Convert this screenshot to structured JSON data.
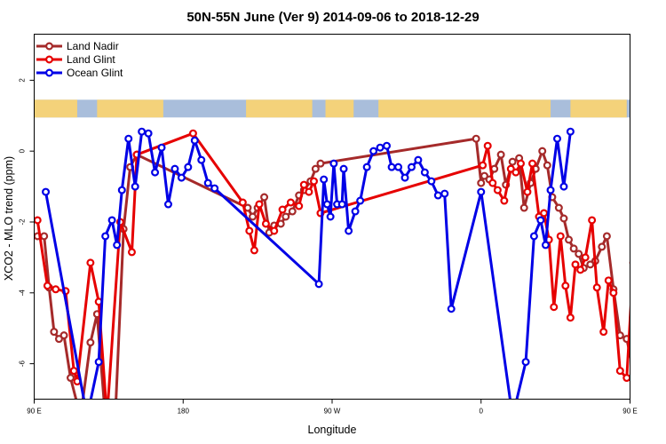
{
  "chart_data": {
    "type": "line",
    "title": "50N-55N June (Ver 9)   2014-09-06 to 2018-12-29",
    "xlabel": "Longitude",
    "ylabel": "XCO2 - MLO trend (ppm)",
    "xlim": [
      90,
      450
    ],
    "ylim": [
      -7,
      3.3
    ],
    "xticks": [
      {
        "value": 90,
        "label": "90 E"
      },
      {
        "value": 180,
        "label": "180"
      },
      {
        "value": 270,
        "label": "90 W"
      },
      {
        "value": 360,
        "label": "0"
      },
      {
        "value": 450,
        "label": "90 E"
      },
      {
        "value": 540,
        "label": "180"
      }
    ],
    "yticks": [
      {
        "value": -6,
        "label": "-6"
      },
      {
        "value": -4,
        "label": "-4"
      },
      {
        "value": -2,
        "label": "-2"
      },
      {
        "value": 0,
        "label": "0"
      },
      {
        "value": 2,
        "label": "2"
      }
    ],
    "grid": false,
    "legend_position": "top-left",
    "landmask_band": {
      "ymin": 0.95,
      "ymax": 1.45,
      "land_color": "#f4d27a",
      "ocean_color": "#a9bedb"
    },
    "series": [
      {
        "name": "Land Nadir",
        "color": "#a52a2a",
        "points": [
          [
            92,
            -2.4
          ],
          [
            96,
            -2.4
          ],
          [
            99,
            -3.85
          ],
          [
            102,
            -5.1
          ],
          [
            105,
            -5.3
          ],
          [
            108,
            -5.2
          ],
          [
            112,
            -6.4
          ],
          [
            118,
            -7.5
          ],
          [
            124,
            -5.4
          ],
          [
            128,
            -4.6
          ],
          [
            133,
            -7.5
          ],
          [
            139,
            -7.5
          ],
          [
            144,
            -2.2
          ],
          [
            148,
            -0.45
          ],
          [
            152,
            -0.1
          ],
          [
            219,
            -1.6
          ],
          [
            222,
            -1.85
          ],
          [
            225,
            -1.6
          ],
          [
            229,
            -1.3
          ],
          [
            232,
            -2.3
          ],
          [
            235,
            -2.1
          ],
          [
            239,
            -2.05
          ],
          [
            242,
            -1.85
          ],
          [
            246,
            -1.7
          ],
          [
            250,
            -1.25
          ],
          [
            253,
            -1.1
          ],
          [
            257,
            -0.85
          ],
          [
            260,
            -0.5
          ],
          [
            263,
            -0.35
          ],
          [
            357,
            0.35
          ],
          [
            360,
            -0.9
          ],
          [
            362,
            -0.7
          ],
          [
            365,
            -0.8
          ],
          [
            368,
            -0.5
          ],
          [
            372,
            -0.1
          ],
          [
            375,
            -0.95
          ],
          [
            379,
            -0.3
          ],
          [
            383,
            -0.2
          ],
          [
            386,
            -1.6
          ],
          [
            390,
            -0.9
          ],
          [
            393,
            -0.5
          ],
          [
            397,
            0.0
          ],
          [
            400,
            -0.4
          ],
          [
            403,
            -1.3
          ],
          [
            407,
            -1.6
          ],
          [
            410,
            -1.9
          ],
          [
            413,
            -2.5
          ],
          [
            416,
            -2.75
          ],
          [
            419,
            -2.9
          ],
          [
            422,
            -3.3
          ],
          [
            426,
            -3.2
          ],
          [
            429,
            -3.1
          ],
          [
            433,
            -2.7
          ],
          [
            436,
            -2.4
          ],
          [
            440,
            -3.9
          ],
          [
            444,
            -5.2
          ],
          [
            448,
            -5.3
          ],
          [
            453,
            -6.4
          ],
          [
            460,
            -7.5
          ]
        ]
      },
      {
        "name": "Land Glint",
        "color": "#e60000",
        "points": [
          [
            92,
            -1.95
          ],
          [
            98,
            -3.8
          ],
          [
            103,
            -3.9
          ],
          [
            109,
            -3.95
          ],
          [
            114,
            -6.2
          ],
          [
            116,
            -6.5
          ],
          [
            124,
            -3.15
          ],
          [
            129,
            -4.25
          ],
          [
            134,
            -7.5
          ],
          [
            142,
            -2.0
          ],
          [
            149,
            -2.85
          ],
          [
            152,
            -0.1
          ],
          [
            186,
            0.5
          ],
          [
            216,
            -1.45
          ],
          [
            220,
            -2.25
          ],
          [
            223,
            -2.8
          ],
          [
            226,
            -1.5
          ],
          [
            230,
            -2.05
          ],
          [
            235,
            -2.25
          ],
          [
            240,
            -1.65
          ],
          [
            245,
            -1.45
          ],
          [
            250,
            -1.55
          ],
          [
            253,
            -0.95
          ],
          [
            256,
            -1.15
          ],
          [
            259,
            -0.85
          ],
          [
            263,
            -1.75
          ],
          [
            361,
            -0.4
          ],
          [
            364,
            0.15
          ],
          [
            367,
            -0.9
          ],
          [
            370,
            -1.1
          ],
          [
            374,
            -1.4
          ],
          [
            378,
            -0.5
          ],
          [
            381,
            -0.6
          ],
          [
            384,
            -0.35
          ],
          [
            388,
            -1.15
          ],
          [
            391,
            -0.35
          ],
          [
            395,
            -1.85
          ],
          [
            398,
            -1.75
          ],
          [
            401,
            -2.5
          ],
          [
            404,
            -4.4
          ],
          [
            408,
            -2.4
          ],
          [
            411,
            -3.8
          ],
          [
            414,
            -4.7
          ],
          [
            417,
            -3.2
          ],
          [
            420,
            -3.35
          ],
          [
            423,
            -3.0
          ],
          [
            427,
            -1.95
          ],
          [
            430,
            -3.85
          ],
          [
            434,
            -5.1
          ],
          [
            437,
            -3.65
          ],
          [
            440,
            -4.0
          ],
          [
            444,
            -6.2
          ],
          [
            448,
            -6.4
          ],
          [
            452,
            -3.15
          ],
          [
            456,
            -4.25
          ],
          [
            461,
            -7.5
          ],
          [
            466,
            -2.0
          ],
          [
            470,
            -2.85
          ],
          [
            473,
            -0.1
          ]
        ]
      },
      {
        "name": "Ocean Glint",
        "color": "#0000e6",
        "points": [
          [
            97,
            -1.15
          ],
          [
            122,
            -7.5
          ],
          [
            129,
            -5.95
          ],
          [
            133,
            -2.4
          ],
          [
            137,
            -1.95
          ],
          [
            140,
            -2.65
          ],
          [
            143,
            -1.1
          ],
          [
            147,
            0.35
          ],
          [
            151,
            -1.0
          ],
          [
            155,
            0.55
          ],
          [
            159,
            0.5
          ],
          [
            163,
            -0.6
          ],
          [
            167,
            0.1
          ],
          [
            171,
            -1.5
          ],
          [
            175,
            -0.5
          ],
          [
            179,
            -0.75
          ],
          [
            183,
            -0.45
          ],
          [
            187,
            0.3
          ],
          [
            191,
            -0.25
          ],
          [
            195,
            -0.9
          ],
          [
            199,
            -1.05
          ],
          [
            262,
            -3.75
          ],
          [
            265,
            -0.8
          ],
          [
            267,
            -1.5
          ],
          [
            269,
            -1.85
          ],
          [
            271,
            -0.35
          ],
          [
            273,
            -1.5
          ],
          [
            276,
            -1.5
          ],
          [
            277,
            -0.5
          ],
          [
            280,
            -2.25
          ],
          [
            284,
            -1.7
          ],
          [
            287,
            -1.4
          ],
          [
            291,
            -0.45
          ],
          [
            295,
            0.0
          ],
          [
            299,
            0.1
          ],
          [
            303,
            0.15
          ],
          [
            306,
            -0.45
          ],
          [
            310,
            -0.45
          ],
          [
            314,
            -0.75
          ],
          [
            318,
            -0.45
          ],
          [
            322,
            -0.25
          ],
          [
            326,
            -0.6
          ],
          [
            330,
            -0.85
          ],
          [
            334,
            -1.25
          ],
          [
            338,
            -1.2
          ],
          [
            342,
            -4.45
          ],
          [
            360,
            -1.15
          ],
          [
            379,
            -7.5
          ],
          [
            387,
            -5.95
          ],
          [
            392,
            -2.4
          ],
          [
            396,
            -1.95
          ],
          [
            399,
            -2.65
          ],
          [
            402,
            -1.1
          ],
          [
            406,
            0.35
          ],
          [
            410,
            -1.0
          ],
          [
            414,
            0.55
          ]
        ]
      }
    ]
  }
}
